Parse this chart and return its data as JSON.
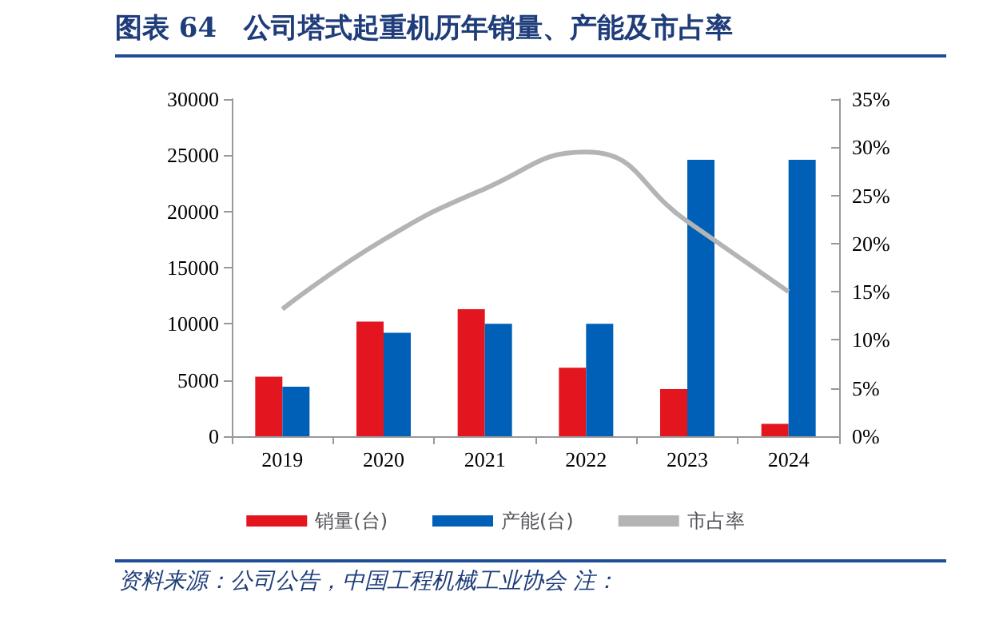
{
  "chart_data": {
    "type": "bar",
    "title": "图表 64　公司塔式起重机历年销量、产能及市占率",
    "categories": [
      "2019",
      "2020",
      "2021",
      "2022",
      "2023",
      "2024"
    ],
    "series": [
      {
        "name": "销量(台)",
        "color": "#e3161f",
        "values": [
          5300,
          10200,
          11300,
          6100,
          4200,
          1100
        ]
      },
      {
        "name": "产能(台)",
        "color": "#0060b8",
        "values": [
          4400,
          9200,
          10000,
          10000,
          24600,
          24600
        ]
      },
      {
        "name": "市占率",
        "type": "line",
        "axis": "y2",
        "color": "#b4b4b4",
        "values": [
          13.2,
          20.4,
          25.7,
          29.5,
          22.3,
          15.0
        ]
      }
    ],
    "ylim": [
      0,
      30000
    ],
    "yticks": [
      0,
      5000,
      10000,
      15000,
      20000,
      25000,
      30000
    ],
    "y2lim": [
      0,
      35
    ],
    "y2ticks": [
      {
        "value": 0,
        "label": "0%"
      },
      {
        "value": 5,
        "label": "5%"
      },
      {
        "value": 10,
        "label": "10%"
      },
      {
        "value": 15,
        "label": "15%"
      },
      {
        "value": 20,
        "label": "20%"
      },
      {
        "value": 25,
        "label": "25%"
      },
      {
        "value": 30,
        "label": "30%"
      },
      {
        "value": 35,
        "label": "35%"
      }
    ],
    "grid": false,
    "legend": "bottom",
    "marker": "none",
    "annotations": [
      "资料来源：公司公告，中国工程机械工业协会 注："
    ]
  }
}
